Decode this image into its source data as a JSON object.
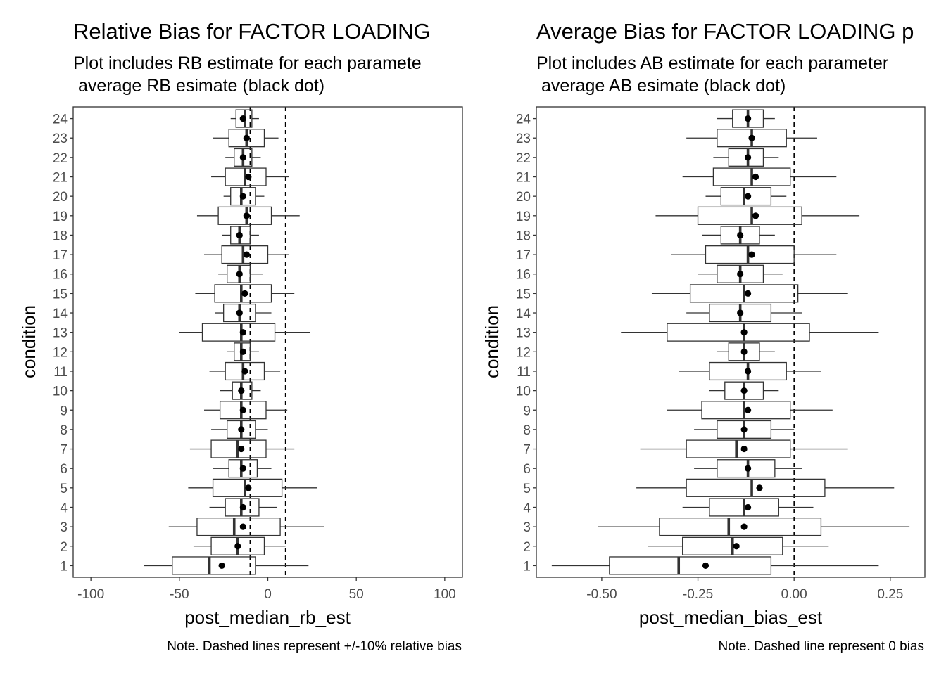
{
  "chart_data": [
    {
      "type": "boxplot",
      "title": "Relative Bias for FACTOR LOADING",
      "subtitle_lines": [
        "Plot includes RB estimate for each paramete",
        " average RB esimate (black dot)"
      ],
      "xlabel": "post_median_rb_est",
      "ylabel": "condition",
      "xlim": [
        -110,
        110
      ],
      "x_ticks": [
        -100,
        -50,
        0,
        50,
        100
      ],
      "x_tick_labels": [
        "-100",
        "-50",
        "0",
        "50",
        "100"
      ],
      "reference_lines": [
        -10,
        10
      ],
      "note": "Note. Dashed lines represent +/-10% relative bias",
      "grid": false,
      "categories": [
        "1",
        "2",
        "3",
        "4",
        "5",
        "6",
        "7",
        "8",
        "9",
        "10",
        "11",
        "12",
        "13",
        "14",
        "15",
        "16",
        "17",
        "18",
        "19",
        "20",
        "21",
        "22",
        "23",
        "24"
      ],
      "boxes": [
        {
          "condition": "1",
          "min": -70,
          "q1": -54,
          "median": -33,
          "q3": -7,
          "max": 23,
          "mean": -26
        },
        {
          "condition": "2",
          "min": -42,
          "q1": -32,
          "median": -17,
          "q3": -2,
          "max": 10,
          "mean": -17
        },
        {
          "condition": "3",
          "min": -56,
          "q1": -40,
          "median": -19,
          "q3": 7,
          "max": 32,
          "mean": -14
        },
        {
          "condition": "4",
          "min": -33,
          "q1": -24,
          "median": -15,
          "q3": -5,
          "max": 5,
          "mean": -14
        },
        {
          "condition": "5",
          "min": -45,
          "q1": -31,
          "median": -13,
          "q3": 8,
          "max": 28,
          "mean": -11
        },
        {
          "condition": "6",
          "min": -31,
          "q1": -22,
          "median": -15,
          "q3": -6,
          "max": 2,
          "mean": -14
        },
        {
          "condition": "7",
          "min": -44,
          "q1": -32,
          "median": -17,
          "q3": -1,
          "max": 15,
          "mean": -15
        },
        {
          "condition": "8",
          "min": -32,
          "q1": -23,
          "median": -15,
          "q3": -7,
          "max": 0,
          "mean": -15
        },
        {
          "condition": "9",
          "min": -36,
          "q1": -27,
          "median": -15,
          "q3": -1,
          "max": 11,
          "mean": -14
        },
        {
          "condition": "10",
          "min": -27,
          "q1": -20,
          "median": -15,
          "q3": -9,
          "max": -4,
          "mean": -15
        },
        {
          "condition": "11",
          "min": -33,
          "q1": -24,
          "median": -14,
          "q3": -2,
          "max": 7,
          "mean": -13
        },
        {
          "condition": "12",
          "min": -23,
          "q1": -19,
          "median": -15,
          "q3": -10,
          "max": -5,
          "mean": -14
        },
        {
          "condition": "13",
          "min": -50,
          "q1": -37,
          "median": -15,
          "q3": 4,
          "max": 24,
          "mean": -14
        },
        {
          "condition": "14",
          "min": -30,
          "q1": -25,
          "median": -16,
          "q3": -7,
          "max": 2,
          "mean": -16
        },
        {
          "condition": "15",
          "min": -41,
          "q1": -30,
          "median": -15,
          "q3": 2,
          "max": 15,
          "mean": -13
        },
        {
          "condition": "16",
          "min": -28,
          "q1": -23,
          "median": -16,
          "q3": -10,
          "max": -3,
          "mean": -16
        },
        {
          "condition": "17",
          "min": -36,
          "q1": -26,
          "median": -14,
          "q3": 0,
          "max": 12,
          "mean": -12
        },
        {
          "condition": "18",
          "min": -26,
          "q1": -21,
          "median": -16,
          "q3": -10,
          "max": -5,
          "mean": -16
        },
        {
          "condition": "19",
          "min": -40,
          "q1": -28,
          "median": -12,
          "q3": 2,
          "max": 18,
          "mean": -12
        },
        {
          "condition": "20",
          "min": -25,
          "q1": -21,
          "median": -15,
          "q3": -7,
          "max": -2,
          "mean": -14
        },
        {
          "condition": "21",
          "min": -32,
          "q1": -24,
          "median": -13,
          "q3": -1,
          "max": 12,
          "mean": -11
        },
        {
          "condition": "22",
          "min": -24,
          "q1": -19,
          "median": -14,
          "q3": -9,
          "max": -4,
          "mean": -14
        },
        {
          "condition": "23",
          "min": -31,
          "q1": -22,
          "median": -12,
          "q3": -2,
          "max": 6,
          "mean": -12
        },
        {
          "condition": "24",
          "min": -21,
          "q1": -18,
          "median": -13,
          "q3": -9,
          "max": -5,
          "mean": -14
        }
      ]
    },
    {
      "type": "boxplot",
      "title": "Average Bias for FACTOR LOADING p",
      "subtitle_lines": [
        "Plot includes AB estimate for each parameter",
        " average AB esimate (black dot)"
      ],
      "xlabel": "post_median_bias_est",
      "ylabel": "condition",
      "xlim": [
        -0.67,
        0.34
      ],
      "x_ticks": [
        -0.5,
        -0.25,
        0,
        0.25
      ],
      "x_tick_labels": [
        "-0.50",
        "-0.25",
        "0.00",
        "0.25"
      ],
      "reference_lines": [
        0
      ],
      "note": "Note. Dashed line represent 0 bias",
      "grid": false,
      "categories": [
        "1",
        "2",
        "3",
        "4",
        "5",
        "6",
        "7",
        "8",
        "9",
        "10",
        "11",
        "12",
        "13",
        "14",
        "15",
        "16",
        "17",
        "18",
        "19",
        "20",
        "21",
        "22",
        "23",
        "24"
      ],
      "boxes": [
        {
          "condition": "1",
          "min": -0.63,
          "q1": -0.48,
          "median": -0.3,
          "q3": -0.06,
          "max": 0.22,
          "mean": -0.23
        },
        {
          "condition": "2",
          "min": -0.38,
          "q1": -0.29,
          "median": -0.16,
          "q3": -0.03,
          "max": 0.09,
          "mean": -0.15
        },
        {
          "condition": "3",
          "min": -0.51,
          "q1": -0.35,
          "median": -0.17,
          "q3": 0.07,
          "max": 0.3,
          "mean": -0.13
        },
        {
          "condition": "4",
          "min": -0.29,
          "q1": -0.22,
          "median": -0.13,
          "q3": -0.04,
          "max": 0.05,
          "mean": -0.12
        },
        {
          "condition": "5",
          "min": -0.41,
          "q1": -0.28,
          "median": -0.11,
          "q3": 0.08,
          "max": 0.26,
          "mean": -0.09
        },
        {
          "condition": "6",
          "min": -0.26,
          "q1": -0.2,
          "median": -0.12,
          "q3": -0.05,
          "max": 0.02,
          "mean": -0.12
        },
        {
          "condition": "7",
          "min": -0.4,
          "q1": -0.28,
          "median": -0.15,
          "q3": -0.01,
          "max": 0.14,
          "mean": -0.13
        },
        {
          "condition": "8",
          "min": -0.26,
          "q1": -0.2,
          "median": -0.13,
          "q3": -0.06,
          "max": 0.0,
          "mean": -0.13
        },
        {
          "condition": "9",
          "min": -0.33,
          "q1": -0.24,
          "median": -0.13,
          "q3": -0.01,
          "max": 0.1,
          "mean": -0.12
        },
        {
          "condition": "10",
          "min": -0.22,
          "q1": -0.18,
          "median": -0.13,
          "q3": -0.08,
          "max": -0.04,
          "mean": -0.13
        },
        {
          "condition": "11",
          "min": -0.3,
          "q1": -0.22,
          "median": -0.12,
          "q3": -0.02,
          "max": 0.07,
          "mean": -0.12
        },
        {
          "condition": "12",
          "min": -0.2,
          "q1": -0.17,
          "median": -0.13,
          "q3": -0.09,
          "max": -0.05,
          "mean": -0.13
        },
        {
          "condition": "13",
          "min": -0.45,
          "q1": -0.33,
          "median": -0.13,
          "q3": 0.04,
          "max": 0.22,
          "mean": -0.13
        },
        {
          "condition": "14",
          "min": -0.28,
          "q1": -0.22,
          "median": -0.14,
          "q3": -0.06,
          "max": 0.02,
          "mean": -0.14
        },
        {
          "condition": "15",
          "min": -0.37,
          "q1": -0.27,
          "median": -0.13,
          "q3": 0.01,
          "max": 0.14,
          "mean": -0.12
        },
        {
          "condition": "16",
          "min": -0.25,
          "q1": -0.2,
          "median": -0.14,
          "q3": -0.08,
          "max": -0.03,
          "mean": -0.14
        },
        {
          "condition": "17",
          "min": -0.32,
          "q1": -0.23,
          "median": -0.12,
          "q3": 0.0,
          "max": 0.11,
          "mean": -0.11
        },
        {
          "condition": "18",
          "min": -0.24,
          "q1": -0.19,
          "median": -0.14,
          "q3": -0.09,
          "max": -0.05,
          "mean": -0.14
        },
        {
          "condition": "19",
          "min": -0.36,
          "q1": -0.25,
          "median": -0.11,
          "q3": 0.02,
          "max": 0.17,
          "mean": -0.1
        },
        {
          "condition": "20",
          "min": -0.23,
          "q1": -0.19,
          "median": -0.13,
          "q3": -0.06,
          "max": -0.02,
          "mean": -0.12
        },
        {
          "condition": "21",
          "min": -0.29,
          "q1": -0.21,
          "median": -0.11,
          "q3": -0.01,
          "max": 0.11,
          "mean": -0.1
        },
        {
          "condition": "22",
          "min": -0.21,
          "q1": -0.17,
          "median": -0.12,
          "q3": -0.08,
          "max": -0.04,
          "mean": -0.12
        },
        {
          "condition": "23",
          "min": -0.28,
          "q1": -0.2,
          "median": -0.11,
          "q3": -0.02,
          "max": 0.06,
          "mean": -0.11
        },
        {
          "condition": "24",
          "min": -0.2,
          "q1": -0.16,
          "median": -0.12,
          "q3": -0.08,
          "max": -0.05,
          "mean": -0.12
        }
      ]
    }
  ]
}
